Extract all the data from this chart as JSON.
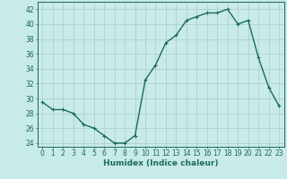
{
  "x": [
    0,
    1,
    2,
    3,
    4,
    5,
    6,
    7,
    8,
    9,
    10,
    11,
    12,
    13,
    14,
    15,
    16,
    17,
    18,
    19,
    20,
    21,
    22,
    23
  ],
  "y": [
    29.5,
    28.5,
    28.5,
    28,
    26.5,
    26,
    25,
    24,
    24,
    25,
    32.5,
    34.5,
    37.5,
    38.5,
    40.5,
    41,
    41.5,
    41.5,
    42,
    40,
    40.5,
    35.5,
    31.5,
    29
  ],
  "line_color": "#1a6b5a",
  "marker_color": "#1a6b5a",
  "bg_color": "#c8eae8",
  "grid_color": "#a8ccc8",
  "xlabel": "Humidex (Indice chaleur)",
  "ylim": [
    23.5,
    43
  ],
  "xlim": [
    -0.5,
    23.5
  ],
  "yticks": [
    24,
    26,
    28,
    30,
    32,
    34,
    36,
    38,
    40,
    42
  ],
  "xticks": [
    0,
    1,
    2,
    3,
    4,
    5,
    6,
    7,
    8,
    9,
    10,
    11,
    12,
    13,
    14,
    15,
    16,
    17,
    18,
    19,
    20,
    21,
    22,
    23
  ],
  "label_fontsize": 6.5,
  "tick_fontsize": 5.5,
  "linewidth": 1.0,
  "markersize": 2.0
}
